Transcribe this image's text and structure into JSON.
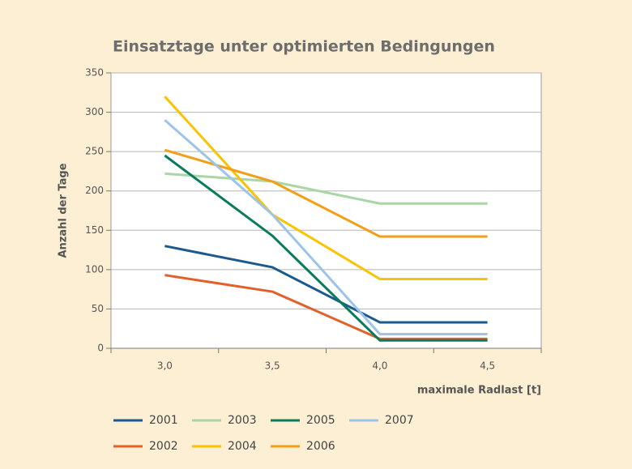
{
  "chart_data": {
    "type": "line",
    "title": "Einsatztage unter optimierten Bedingungen",
    "x_label": "maximale Radlast [t]",
    "y_label": "Anzahl der Tage",
    "categories": [
      "3,0",
      "3,5",
      "4,0",
      "4,5"
    ],
    "ylim": [
      0,
      350
    ],
    "yticks": [
      0,
      50,
      100,
      150,
      200,
      250,
      300,
      350
    ],
    "grid": true,
    "series": [
      {
        "name": "2001",
        "color": "#1b5a8e",
        "values": [
          130,
          103,
          33,
          33
        ]
      },
      {
        "name": "2002",
        "color": "#e2602a",
        "values": [
          93,
          72,
          12,
          12
        ]
      },
      {
        "name": "2003",
        "color": "#a9d6a4",
        "values": [
          222,
          212,
          184,
          184
        ]
      },
      {
        "name": "2004",
        "color": "#f8c300",
        "values": [
          320,
          170,
          88,
          88
        ]
      },
      {
        "name": "2005",
        "color": "#0a7b5c",
        "values": [
          245,
          143,
          10,
          10
        ]
      },
      {
        "name": "2006",
        "color": "#f29e16",
        "values": [
          252,
          212,
          142,
          142
        ]
      },
      {
        "name": "2007",
        "color": "#9dc4e8",
        "values": [
          290,
          170,
          18,
          18
        ]
      }
    ]
  }
}
